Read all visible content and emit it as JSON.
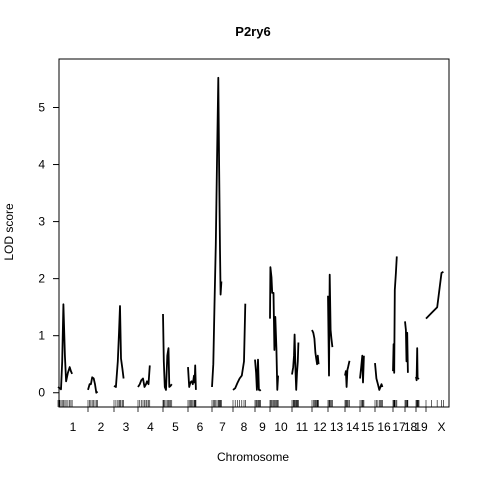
{
  "chart_data": {
    "type": "line",
    "title": "P2ry6",
    "xlabel": "Chromosome",
    "ylabel": "LOD score",
    "ylim": [
      -0.25,
      5.85
    ],
    "y_ticks": [
      0,
      1,
      2,
      3,
      4,
      5
    ],
    "grid": false,
    "chromosomes": [
      {
        "label": "1",
        "points": [
          [
            0.0,
            0.1
          ],
          [
            0.06,
            0.08
          ],
          [
            0.1,
            0.06
          ],
          [
            0.14,
            0.55
          ],
          [
            0.18,
            1.55
          ],
          [
            0.23,
            0.65
          ],
          [
            0.27,
            0.2
          ],
          [
            0.33,
            0.35
          ],
          [
            0.39,
            0.45
          ],
          [
            0.43,
            0.38
          ],
          [
            0.47,
            0.33
          ]
        ]
      },
      {
        "label": "2",
        "points": [
          [
            0.0,
            0.05
          ],
          [
            0.06,
            0.15
          ],
          [
            0.11,
            0.15
          ],
          [
            0.16,
            0.27
          ],
          [
            0.22,
            0.25
          ],
          [
            0.27,
            0.15
          ],
          [
            0.32,
            0.0
          ],
          [
            0.37,
            0.02
          ]
        ]
      },
      {
        "label": "3",
        "points": [
          [
            0.0,
            0.12
          ],
          [
            0.08,
            0.1
          ],
          [
            0.16,
            0.55
          ],
          [
            0.21,
            1.05
          ],
          [
            0.25,
            1.52
          ],
          [
            0.29,
            0.6
          ],
          [
            0.35,
            0.42
          ],
          [
            0.4,
            0.25
          ]
        ]
      },
      {
        "label": "4",
        "points": [
          [
            0.0,
            0.1
          ],
          [
            0.07,
            0.15
          ],
          [
            0.13,
            0.22
          ],
          [
            0.2,
            0.25
          ],
          [
            0.26,
            0.1
          ],
          [
            0.32,
            0.15
          ],
          [
            0.36,
            0.2
          ],
          [
            0.42,
            0.15
          ],
          [
            0.47,
            0.48
          ]
        ]
      },
      {
        "label": "5",
        "points": [
          [
            0.0,
            1.38
          ],
          [
            0.03,
            0.55
          ],
          [
            0.07,
            0.1
          ],
          [
            0.12,
            0.05
          ],
          [
            0.17,
            0.65
          ],
          [
            0.22,
            0.78
          ],
          [
            0.25,
            0.1
          ],
          [
            0.3,
            0.12
          ],
          [
            0.35,
            0.15
          ]
        ]
      },
      {
        "label": "6",
        "points": [
          [
            0.0,
            0.45
          ],
          [
            0.05,
            0.1
          ],
          [
            0.1,
            0.18
          ],
          [
            0.15,
            0.2
          ],
          [
            0.2,
            0.15
          ],
          [
            0.25,
            0.3
          ],
          [
            0.28,
            0.18
          ],
          [
            0.3,
            0.48
          ],
          [
            0.33,
            0.05
          ]
        ]
      },
      {
        "label": "7",
        "points": [
          [
            0.0,
            0.1
          ],
          [
            0.06,
            0.5
          ],
          [
            0.12,
            1.55
          ],
          [
            0.18,
            2.6
          ],
          [
            0.24,
            4.05
          ],
          [
            0.3,
            5.52
          ],
          [
            0.34,
            4.0
          ],
          [
            0.38,
            2.5
          ],
          [
            0.41,
            1.72
          ],
          [
            0.45,
            1.95
          ]
        ]
      },
      {
        "label": "8",
        "points": [
          [
            0.0,
            0.05
          ],
          [
            0.1,
            0.08
          ],
          [
            0.2,
            0.17
          ],
          [
            0.3,
            0.25
          ],
          [
            0.4,
            0.3
          ],
          [
            0.5,
            0.55
          ],
          [
            0.56,
            1.56
          ]
        ]
      },
      {
        "label": "9",
        "points": [
          [
            0.0,
            0.58
          ],
          [
            0.07,
            0.35
          ],
          [
            0.13,
            0.05
          ],
          [
            0.2,
            0.58
          ],
          [
            0.26,
            0.05
          ],
          [
            0.32,
            0.05
          ],
          [
            0.37,
            0.03
          ]
        ]
      },
      {
        "label": "10",
        "points": [
          [
            0.0,
            1.3
          ],
          [
            0.02,
            2.2
          ],
          [
            0.07,
            2.02
          ],
          [
            0.1,
            1.75
          ],
          [
            0.16,
            1.75
          ],
          [
            0.2,
            0.75
          ],
          [
            0.24,
            1.33
          ],
          [
            0.29,
            0.78
          ],
          [
            0.33,
            0.05
          ],
          [
            0.37,
            0.3
          ]
        ]
      },
      {
        "label": "11",
        "points": [
          [
            0.0,
            0.32
          ],
          [
            0.06,
            0.45
          ],
          [
            0.1,
            0.65
          ],
          [
            0.13,
            1.02
          ],
          [
            0.17,
            0.45
          ],
          [
            0.21,
            0.05
          ],
          [
            0.25,
            0.35
          ],
          [
            0.29,
            0.55
          ],
          [
            0.32,
            0.88
          ]
        ]
      },
      {
        "label": "12",
        "points": [
          [
            0.0,
            1.1
          ],
          [
            0.08,
            1.05
          ],
          [
            0.15,
            0.95
          ],
          [
            0.21,
            0.7
          ],
          [
            0.26,
            0.6
          ],
          [
            0.32,
            0.5
          ],
          [
            0.36,
            0.65
          ],
          [
            0.41,
            0.5
          ]
        ]
      },
      {
        "label": "13",
        "points": [
          [
            0.0,
            1.7
          ],
          [
            0.06,
            0.3
          ],
          [
            0.1,
            2.07
          ],
          [
            0.15,
            1.1
          ],
          [
            0.2,
            0.95
          ],
          [
            0.26,
            0.8
          ]
        ]
      },
      {
        "label": "14",
        "points": [
          [
            0.0,
            0.3
          ],
          [
            0.06,
            0.38
          ],
          [
            0.11,
            0.1
          ],
          [
            0.16,
            0.4
          ],
          [
            0.21,
            0.45
          ],
          [
            0.3,
            0.56
          ]
        ]
      },
      {
        "label": "15",
        "points": [
          [
            0.0,
            0.25
          ],
          [
            0.08,
            0.45
          ],
          [
            0.15,
            0.65
          ],
          [
            0.2,
            0.18
          ],
          [
            0.26,
            0.65
          ]
        ]
      },
      {
        "label": "16",
        "points": [
          [
            0.0,
            0.52
          ],
          [
            0.08,
            0.25
          ],
          [
            0.16,
            0.15
          ],
          [
            0.24,
            0.05
          ],
          [
            0.3,
            0.1
          ],
          [
            0.36,
            0.15
          ],
          [
            0.41,
            0.1
          ]
        ]
      },
      {
        "label": "17",
        "points": [
          [
            0.0,
            0.38
          ],
          [
            0.05,
            0.85
          ],
          [
            0.1,
            0.35
          ],
          [
            0.15,
            1.8
          ],
          [
            0.24,
            2.1
          ],
          [
            0.32,
            2.39
          ]
        ]
      },
      {
        "label": "18",
        "points": [
          [
            0.0,
            1.25
          ],
          [
            0.08,
            1.1
          ],
          [
            0.14,
            0.55
          ],
          [
            0.2,
            1.05
          ],
          [
            0.26,
            0.35
          ]
        ]
      },
      {
        "label": "19",
        "points": [
          [
            0.0,
            0.28
          ],
          [
            0.06,
            0.22
          ],
          [
            0.12,
            0.78
          ],
          [
            0.16,
            0.25
          ],
          [
            0.22,
            0.25
          ],
          [
            0.3,
            0.24
          ]
        ]
      },
      {
        "label": "X",
        "points": [
          [
            0.0,
            1.3
          ],
          [
            0.18,
            1.4
          ],
          [
            0.36,
            1.5
          ],
          [
            0.5,
            2.1
          ],
          [
            0.56,
            2.12
          ]
        ]
      }
    ]
  }
}
